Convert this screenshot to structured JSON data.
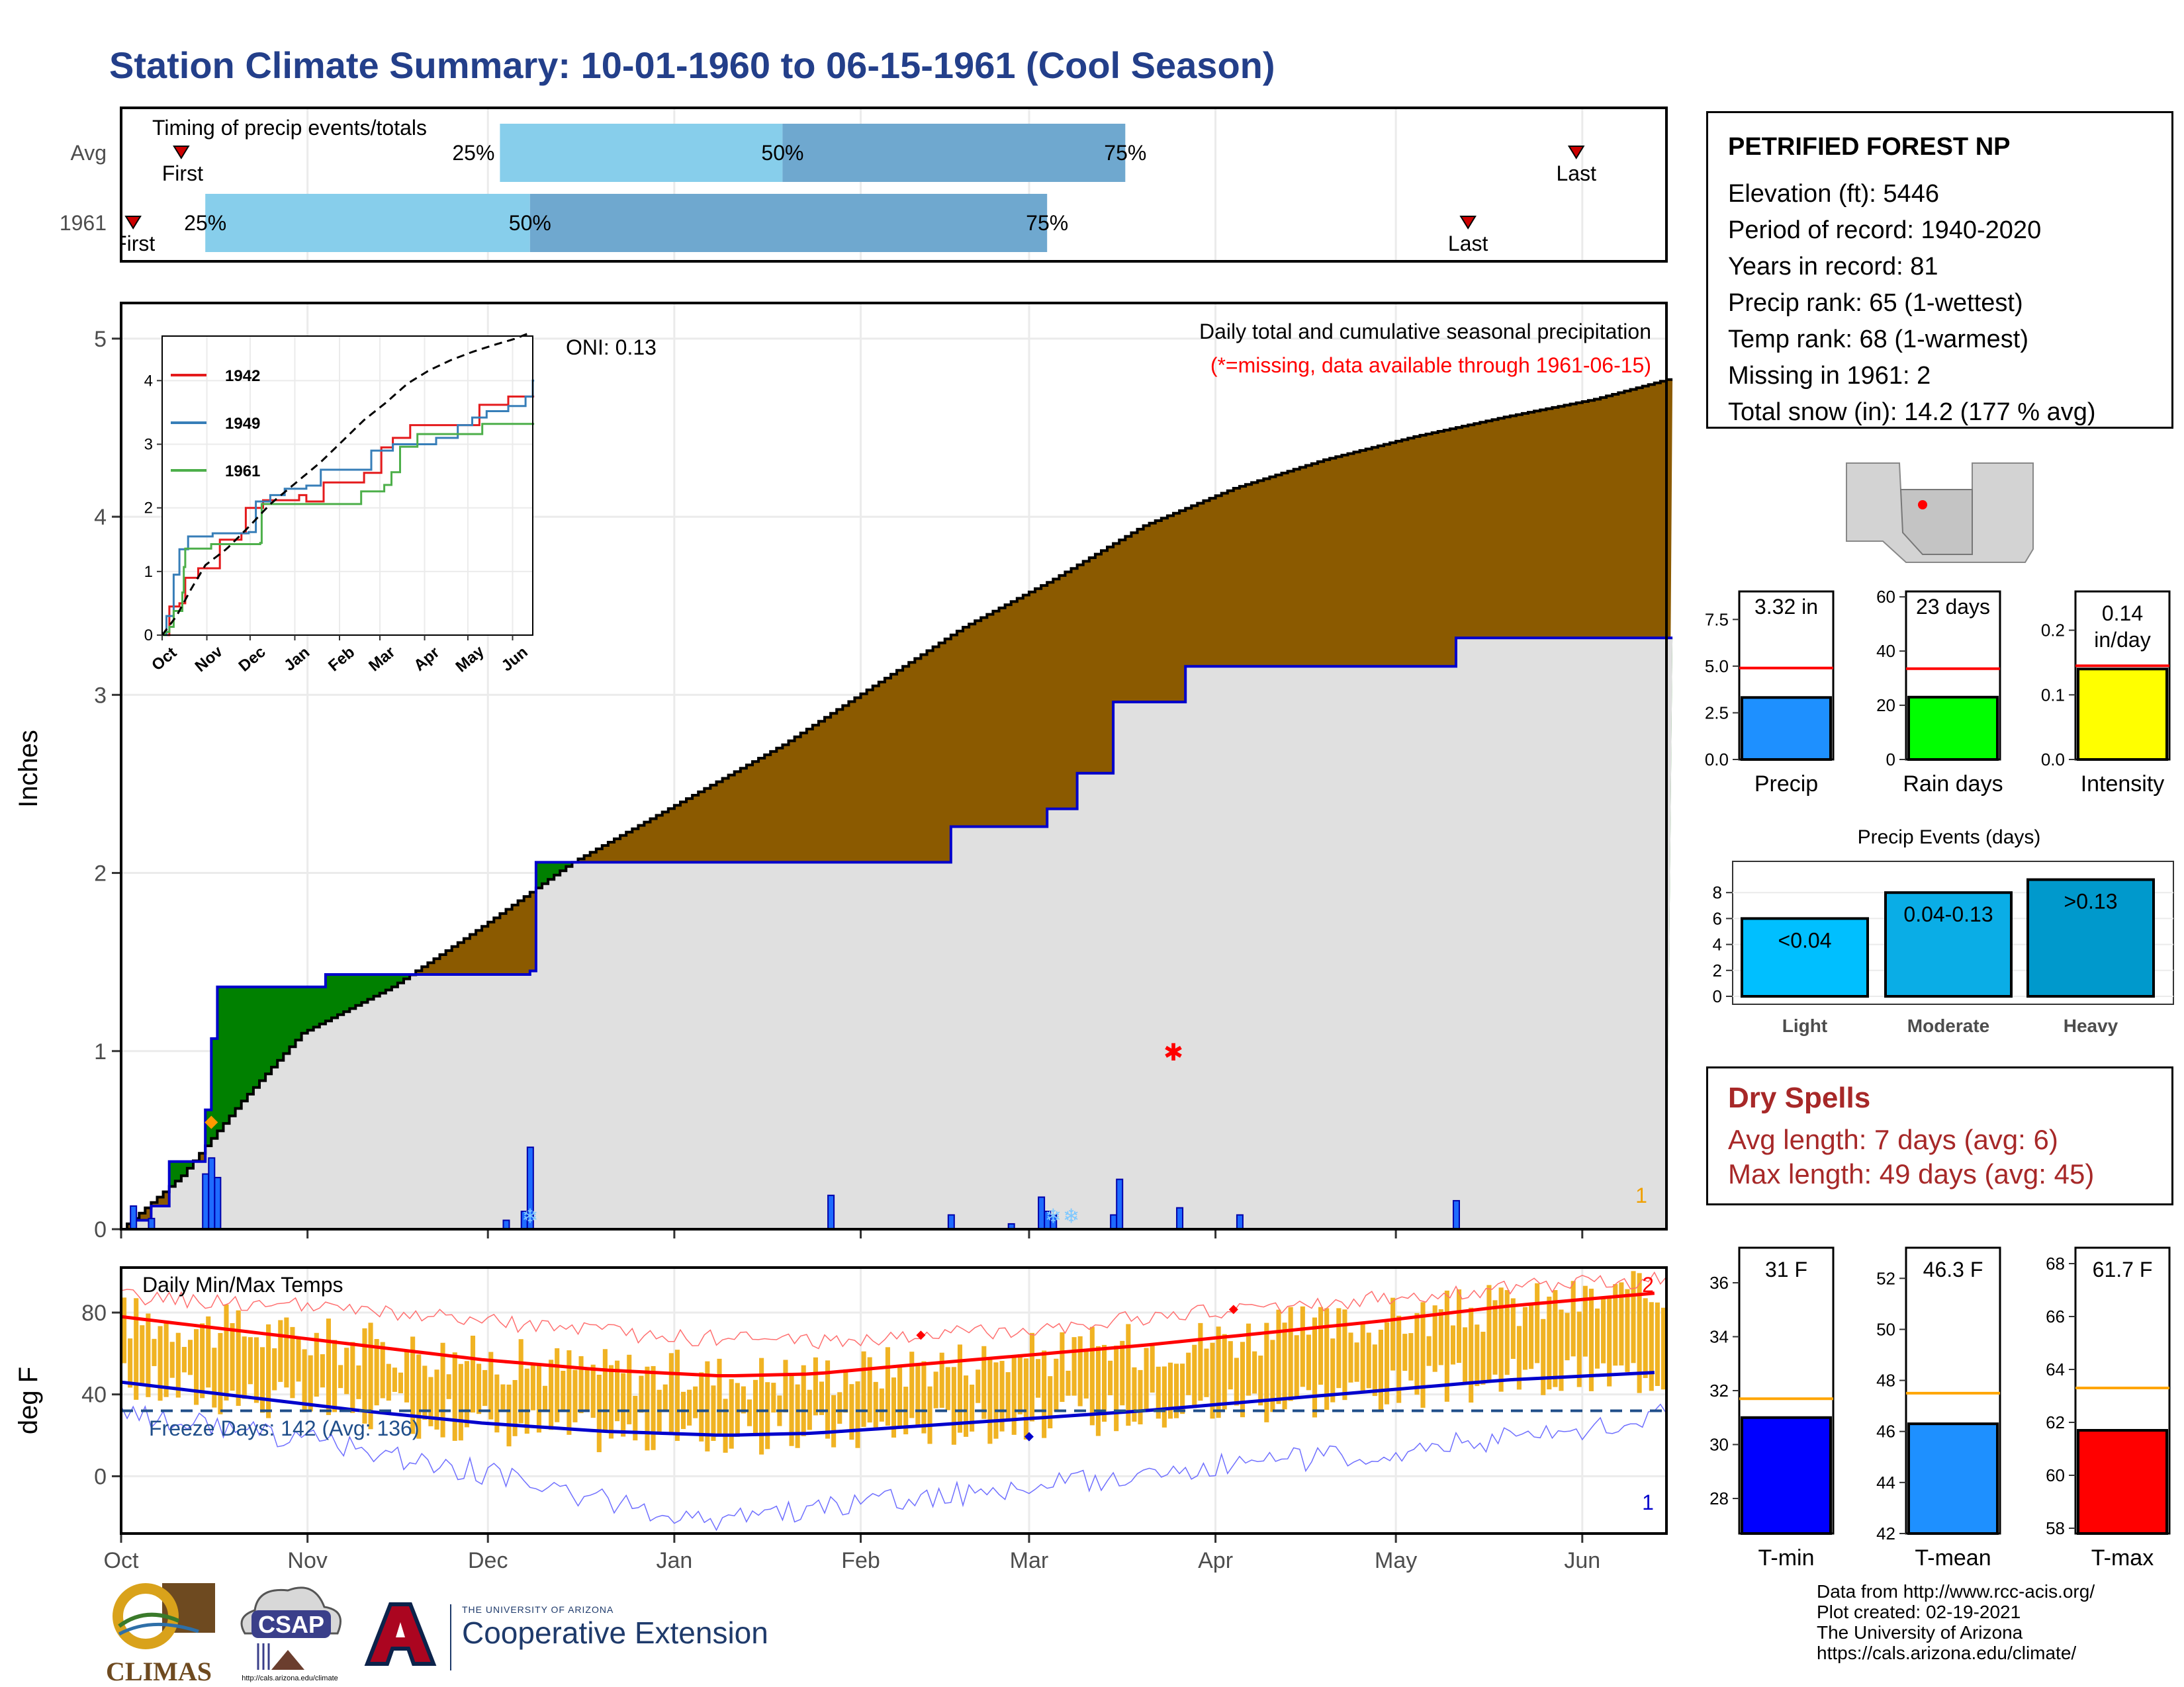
{
  "title": "Station Climate Summary: 10-01-1960 to 06-15-1961 (Cool Season)",
  "station": {
    "name": "PETRIFIED FOREST NP",
    "lines": [
      "Elevation (ft): 5446",
      "Period of record: 1940-2020",
      "Years in record: 81",
      "Precip rank: 65 (1-wettest)",
      "Temp rank: 68 (1-warmest)",
      "Missing in 1961: 2",
      "Total snow (in): 14.2 (177 % avg)"
    ]
  },
  "dry_spells": {
    "title": "Dry Spells",
    "avg_length": "Avg length: 7 days (avg: 6)",
    "max_length": "Max length: 49 days (avg: 45)"
  },
  "credits": [
    "Data from http://www.rcc-acis.org/",
    "Plot created: 02-19-2021",
    "The University of Arizona",
    "https://cals.arizona.edu/climate/"
  ],
  "logos": {
    "climas": "CLIMAS",
    "csap": "CSAP",
    "csap_url": "http://cals.arizona.edu/climate",
    "ua_small": "THE UNIVERSITY OF ARIZONA",
    "ua_big": "Cooperative Extension"
  },
  "colors": {
    "title": "#233F8A",
    "cumulative_fill": "#8B5A00",
    "wet_fill": "#008000",
    "normal_area": "#E0E0E0",
    "current_line": "#0000CC",
    "precip_bar": "#1E6BFF",
    "temp_bar": "#F0B323",
    "tmax_line": "#FF0000",
    "tmin_line": "#0000CC",
    "freeze_line": "#1F4E8A",
    "dry_spells": "#A72828"
  },
  "chart_data": [
    {
      "id": "timing",
      "type": "bar",
      "title": "Timing of precip events/totals",
      "rows": [
        {
          "label": "Avg",
          "first": "Oct 11",
          "q25": "Dec 3",
          "q50": "Jan 19",
          "q75": "Mar 17",
          "last": "May 31",
          "first_label": "First",
          "q25_label": "25%",
          "q50_label": "50%",
          "q75_label": "75%",
          "last_label": "Last"
        },
        {
          "label": "1961",
          "first": "Oct 3",
          "q25": "Oct 15",
          "q50": "Dec 8",
          "q75": "Mar 4",
          "last": "May 13",
          "first_label": "First",
          "q25_label": "25%",
          "q50_label": "50%",
          "q75_label": "75%",
          "last_label": "Last"
        }
      ],
      "colors": {
        "early": "#87CEEB",
        "late": "#6FA8CF",
        "marker": "#CC0000"
      }
    },
    {
      "id": "precip",
      "type": "area",
      "title": "Daily total and cumulative seasonal precipitation",
      "subtitle": "(*=missing, data available through 1961-06-15)",
      "oni": "ONI: 0.13",
      "ylabel": "Inches",
      "ylim": [
        0,
        5.2
      ],
      "yticks": [
        0,
        1,
        2,
        3,
        4,
        5
      ],
      "xticks": [
        "Oct",
        "Nov",
        "Dec",
        "Jan",
        "Feb",
        "Mar",
        "Apr",
        "May",
        "Jun"
      ],
      "normal_cumulative": {
        "day": [
          0,
          10,
          20,
          30,
          45,
          60,
          75,
          92,
          110,
          125,
          140,
          155,
          170,
          185,
          200,
          215,
          230,
          245,
          257
        ],
        "value": [
          0,
          0.3,
          0.72,
          1.1,
          1.36,
          1.7,
          2.06,
          2.38,
          2.72,
          3.05,
          3.38,
          3.65,
          3.95,
          4.16,
          4.32,
          4.45,
          4.56,
          4.66,
          4.77
        ]
      },
      "observed_cumulative": {
        "day": [
          0,
          2,
          5,
          8,
          13,
          14,
          15,
          16,
          34,
          61,
          68,
          69,
          118,
          138,
          153,
          154,
          159,
          164,
          165,
          176,
          177,
          199,
          222,
          257
        ],
        "value": [
          0,
          0.05,
          0.13,
          0.38,
          0.38,
          0.67,
          1.07,
          1.36,
          1.43,
          1.43,
          1.45,
          2.06,
          2.06,
          2.26,
          2.26,
          2.36,
          2.56,
          2.56,
          2.96,
          2.96,
          3.16,
          3.16,
          3.32,
          3.32
        ]
      },
      "daily_precip": {
        "day": [
          2,
          5,
          14,
          15,
          16,
          64,
          67,
          68,
          118,
          138,
          148,
          153,
          154,
          155,
          165,
          166,
          176,
          186,
          222
        ],
        "value": [
          0.13,
          0.06,
          0.31,
          0.4,
          0.29,
          0.05,
          0.1,
          0.46,
          0.19,
          0.08,
          0.03,
          0.18,
          0.1,
          0.08,
          0.08,
          0.28,
          0.12,
          0.08,
          0.16
        ]
      },
      "snow_markers": {
        "day": [
          68,
          155,
          158
        ],
        "value": [
          0.08,
          0.08,
          0.08
        ]
      },
      "missing_marker": {
        "day": 175,
        "value": 1.0
      },
      "record_marker": {
        "day": 15,
        "value": 0.6
      },
      "corner_label": "1"
    },
    {
      "id": "inset",
      "type": "line",
      "xticks": [
        "Oct",
        "Nov",
        "Dec",
        "Jan",
        "Feb",
        "Mar",
        "Apr",
        "May",
        "Jun"
      ],
      "yticks": [
        0,
        1,
        2,
        3,
        4
      ],
      "ylim": [
        0,
        4.7
      ],
      "series": [
        {
          "name": "1942",
          "color": "#E41A1C",
          "day": [
            0,
            5,
            12,
            16,
            25,
            40,
            55,
            58,
            70,
            80,
            95,
            100,
            112,
            128,
            140,
            152,
            160,
            172,
            200,
            220,
            227,
            240,
            257
          ],
          "value": [
            0,
            0.45,
            0.5,
            0.9,
            1.05,
            1.5,
            1.6,
            2.0,
            2.12,
            2.12,
            2.2,
            2.1,
            2.4,
            2.4,
            2.55,
            2.95,
            3.1,
            3.3,
            3.3,
            3.62,
            3.62,
            3.75,
            3.75
          ]
        },
        {
          "name": "1949",
          "color": "#377EB8",
          "day": [
            0,
            3,
            8,
            12,
            18,
            35,
            60,
            65,
            75,
            85,
            100,
            110,
            130,
            145,
            160,
            190,
            205,
            215,
            225,
            240,
            252,
            257
          ],
          "value": [
            0,
            0.3,
            0.95,
            1.35,
            1.55,
            1.6,
            1.62,
            2.1,
            2.2,
            2.3,
            2.35,
            2.6,
            2.6,
            2.9,
            3.0,
            3.1,
            3.3,
            3.42,
            3.52,
            3.6,
            3.75,
            4.0
          ]
        },
        {
          "name": "1961",
          "color": "#4DAF4A",
          "day": [
            0,
            2,
            5,
            8,
            13,
            14,
            15,
            16,
            34,
            61,
            68,
            69,
            118,
            138,
            153,
            154,
            159,
            164,
            165,
            176,
            177,
            199,
            222,
            257
          ],
          "value": [
            0,
            0.05,
            0.13,
            0.38,
            0.38,
            0.67,
            1.07,
            1.36,
            1.43,
            1.43,
            1.45,
            2.06,
            2.06,
            2.26,
            2.26,
            2.36,
            2.56,
            2.56,
            2.96,
            2.96,
            3.16,
            3.16,
            3.32,
            3.32
          ]
        }
      ],
      "normal": {
        "day": [
          0,
          10,
          20,
          30,
          45,
          60,
          75,
          92,
          110,
          125,
          140,
          155,
          170,
          185,
          200,
          215,
          230,
          245,
          257
        ],
        "value": [
          0,
          0.3,
          0.72,
          1.1,
          1.36,
          1.7,
          2.06,
          2.38,
          2.72,
          3.05,
          3.38,
          3.65,
          3.95,
          4.16,
          4.32,
          4.45,
          4.56,
          4.66,
          4.77
        ]
      }
    },
    {
      "id": "temps",
      "type": "bar",
      "title": "Daily Min/Max Temps",
      "ylabel": "deg F",
      "ylim": [
        -28,
        102
      ],
      "yticks": [
        0,
        40,
        80
      ],
      "xticks": [
        "Oct",
        "Nov",
        "Dec",
        "Jan",
        "Feb",
        "Mar",
        "Apr",
        "May",
        "Jun"
      ],
      "freeze_label": "Freeze Days: 142 (Avg: 136)",
      "freeze_value": 32,
      "normal_max": {
        "day": [
          0,
          20,
          40,
          60,
          80,
          100,
          115,
          130,
          150,
          170,
          190,
          210,
          230,
          257
        ],
        "value": [
          78,
          71,
          64,
          57,
          52,
          49,
          50,
          54,
          59,
          64,
          70,
          76,
          83,
          90
        ]
      },
      "normal_min": {
        "day": [
          0,
          20,
          40,
          60,
          80,
          100,
          115,
          130,
          150,
          170,
          190,
          210,
          230,
          257
        ],
        "value": [
          46,
          39,
          32,
          26,
          22,
          20,
          21,
          24,
          28,
          32,
          37,
          42,
          47,
          51
        ]
      },
      "record_max": {
        "day": [
          0,
          30,
          60,
          90,
          120,
          150,
          180,
          210,
          240,
          257
        ],
        "value": [
          88,
          83,
          76,
          68,
          66,
          72,
          80,
          87,
          94,
          96
        ]
      },
      "record_min": {
        "day": [
          0,
          30,
          45,
          60,
          75,
          90,
          100,
          120,
          150,
          180,
          210,
          240,
          257
        ],
        "value": [
          31,
          18,
          10,
          2,
          -8,
          -18,
          -22,
          -14,
          -6,
          4,
          12,
          22,
          30
        ]
      },
      "max_marker_days": [
        133,
        185
      ],
      "min_marker_day": 151,
      "min_marker_value": 19,
      "corner_top": "2",
      "corner_bottom": "1"
    },
    {
      "id": "mini-precip",
      "type": "bar",
      "xlabel": "Precip",
      "label": "3.32 in",
      "value": 3.32,
      "normal": 4.9,
      "ylim": [
        0,
        9.0
      ],
      "yticks": [
        0.0,
        2.5,
        5.0,
        7.5
      ],
      "tick_labels": [
        "0.0",
        "2.5",
        "5.0",
        "7.5"
      ],
      "color": "#1E90FF"
    },
    {
      "id": "mini-raindays",
      "type": "bar",
      "xlabel": "Rain days",
      "label": "23 days",
      "value": 23,
      "normal": 33.5,
      "ylim": [
        0,
        62
      ],
      "yticks": [
        0,
        20,
        40,
        60
      ],
      "tick_labels": [
        "0",
        "20",
        "40",
        "60"
      ],
      "color": "#00FF00"
    },
    {
      "id": "mini-intensity",
      "type": "bar",
      "xlabel": "Intensity",
      "label": "0.14 in/day",
      "value": 0.14,
      "normal": 0.145,
      "ylim": [
        0,
        0.26
      ],
      "yticks": [
        0.0,
        0.1,
        0.2
      ],
      "tick_labels": [
        "0.0",
        "0.1",
        "0.2"
      ],
      "color": "#FFFF00"
    },
    {
      "id": "events",
      "type": "bar",
      "title": "Precip Events (days)",
      "categories": [
        "Light",
        "Moderate",
        "Heavy"
      ],
      "labels": [
        "<0.04",
        "0.04-0.13",
        ">0.13"
      ],
      "values": [
        6,
        8,
        9
      ],
      "ylim": [
        0,
        10
      ],
      "yticks": [
        0,
        2,
        4,
        6,
        8
      ],
      "colors": [
        "#00BFFF",
        "#0AADE6",
        "#0099CC"
      ]
    },
    {
      "id": "mini-tmin",
      "type": "bar",
      "xlabel": "T-min",
      "label": "31 F",
      "value": 31,
      "normal": 31.7,
      "ylim": [
        26.7,
        37.3
      ],
      "yticks": [
        28,
        30,
        32,
        34,
        36
      ],
      "color": "#0000FF"
    },
    {
      "id": "mini-tmean",
      "type": "bar",
      "xlabel": "T-mean",
      "label": "46.3 F",
      "value": 46.3,
      "normal": 47.5,
      "ylim": [
        42,
        53.2
      ],
      "yticks": [
        42,
        44,
        46,
        48,
        50,
        52
      ],
      "color": "#1E90FF"
    },
    {
      "id": "mini-tmax",
      "type": "bar",
      "xlabel": "T-max",
      "label": "61.7 F",
      "value": 61.7,
      "normal": 63.3,
      "ylim": [
        57.8,
        68.6
      ],
      "yticks": [
        58,
        60,
        62,
        64,
        66,
        68
      ],
      "color": "#FF0000"
    }
  ]
}
